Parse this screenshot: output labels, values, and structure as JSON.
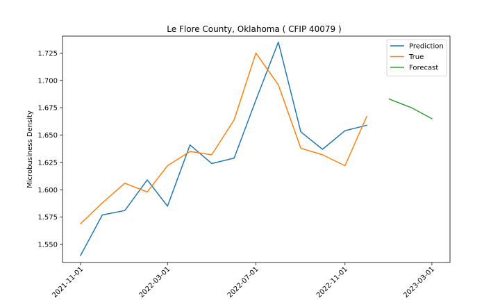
{
  "chart_data": {
    "type": "line",
    "title": "Le Flore County, Oklahoma ( CFIP 40079 )",
    "xlabel": "",
    "ylabel": "Microbusiness Density",
    "xlim": [
      "2021-10-07",
      "2023-03-26"
    ],
    "ylim": [
      1.5335,
      1.7405
    ],
    "x_ticks": [
      "2021-11-01",
      "2022-03-01",
      "2022-07-01",
      "2022-11-01",
      "2023-03-01"
    ],
    "y_ticks": [
      1.55,
      1.575,
      1.6,
      1.625,
      1.65,
      1.675,
      1.7,
      1.725
    ],
    "grid": false,
    "legend_position": "top-right",
    "series": [
      {
        "name": "Prediction",
        "color": "#1f77b4",
        "x": [
          "2021-11-01",
          "2021-12-01",
          "2022-01-01",
          "2022-02-01",
          "2022-03-01",
          "2022-04-01",
          "2022-05-01",
          "2022-06-01",
          "2022-07-01",
          "2022-08-01",
          "2022-09-01",
          "2022-10-01",
          "2022-11-01",
          "2022-12-01"
        ],
        "y": [
          1.54,
          1.577,
          1.581,
          1.609,
          1.585,
          1.641,
          1.624,
          1.629,
          1.682,
          1.735,
          1.653,
          1.637,
          1.654,
          1.659
        ]
      },
      {
        "name": "True",
        "color": "#ff7f0e",
        "x": [
          "2021-11-01",
          "2021-12-01",
          "2022-01-01",
          "2022-02-01",
          "2022-03-01",
          "2022-04-01",
          "2022-05-01",
          "2022-06-01",
          "2022-07-01",
          "2022-08-01",
          "2022-09-01",
          "2022-10-01",
          "2022-11-01",
          "2022-12-01"
        ],
        "y": [
          1.569,
          1.588,
          1.606,
          1.598,
          1.622,
          1.635,
          1.632,
          1.664,
          1.725,
          1.696,
          1.638,
          1.632,
          1.622,
          1.667
        ]
      },
      {
        "name": "Forecast",
        "color": "#2ca02c",
        "x": [
          "2023-01-01",
          "2023-02-01",
          "2023-03-01"
        ],
        "y": [
          1.683,
          1.675,
          1.665
        ]
      }
    ]
  }
}
